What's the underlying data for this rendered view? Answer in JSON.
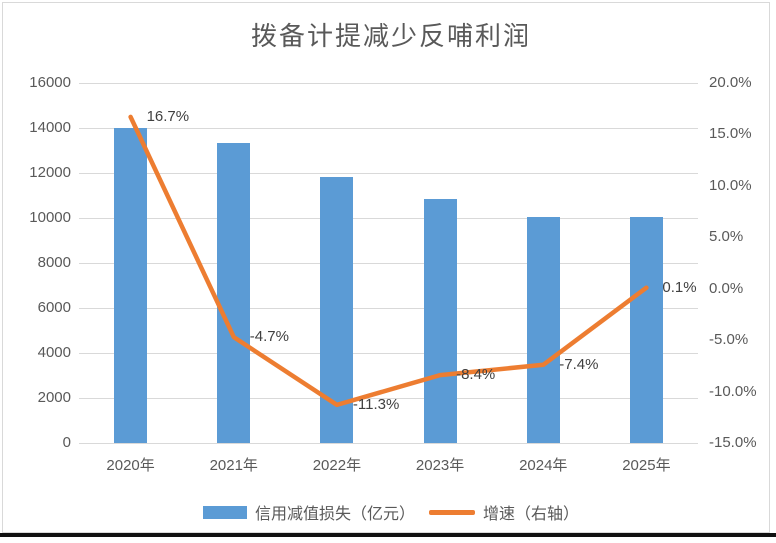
{
  "chart": {
    "title": "拨备计提减少反哺利润",
    "legend": [
      {
        "label": "信用减值损失（亿元）",
        "swatch": "bar",
        "color": "#5b9bd5"
      },
      {
        "label": "增速（右轴）",
        "swatch": "line",
        "color": "#ed7d31"
      }
    ]
  },
  "chart_data": {
    "type": "combo",
    "title": "拨备计提减少反哺利润",
    "categories": [
      "2020年",
      "2021年",
      "2022年",
      "2023年",
      "2024年",
      "2025年"
    ],
    "series": [
      {
        "name": "信用减值损失（亿元）",
        "type": "bar",
        "axis": "left",
        "color": "#5b9bd5",
        "values": [
          14000,
          13342,
          11834,
          10840,
          10038,
          10048
        ]
      },
      {
        "name": "增速（右轴）",
        "type": "line",
        "axis": "right",
        "color": "#ed7d31",
        "values": [
          16.7,
          -4.7,
          -11.3,
          -8.4,
          -7.4,
          0.1
        ],
        "point_labels": [
          "16.7%",
          "-4.7%",
          "-11.3%",
          "-8.4%",
          "-7.4%",
          "0.1%"
        ]
      }
    ],
    "left_axis": {
      "min": 0,
      "max": 16000,
      "step": 2000,
      "ticks": [
        "0",
        "2000",
        "4000",
        "6000",
        "8000",
        "10000",
        "12000",
        "14000",
        "16000"
      ]
    },
    "right_axis": {
      "min": -15,
      "max": 20,
      "step": 5,
      "ticks": [
        "-15.0%",
        "-10.0%",
        "-5.0%",
        "0.0%",
        "5.0%",
        "10.0%",
        "15.0%",
        "20.0%"
      ]
    },
    "grid": true,
    "grid_color": "#d9d9d9",
    "legend_position": "bottom",
    "text_color_axis": "#595959",
    "text_color_labels": "#404040"
  }
}
